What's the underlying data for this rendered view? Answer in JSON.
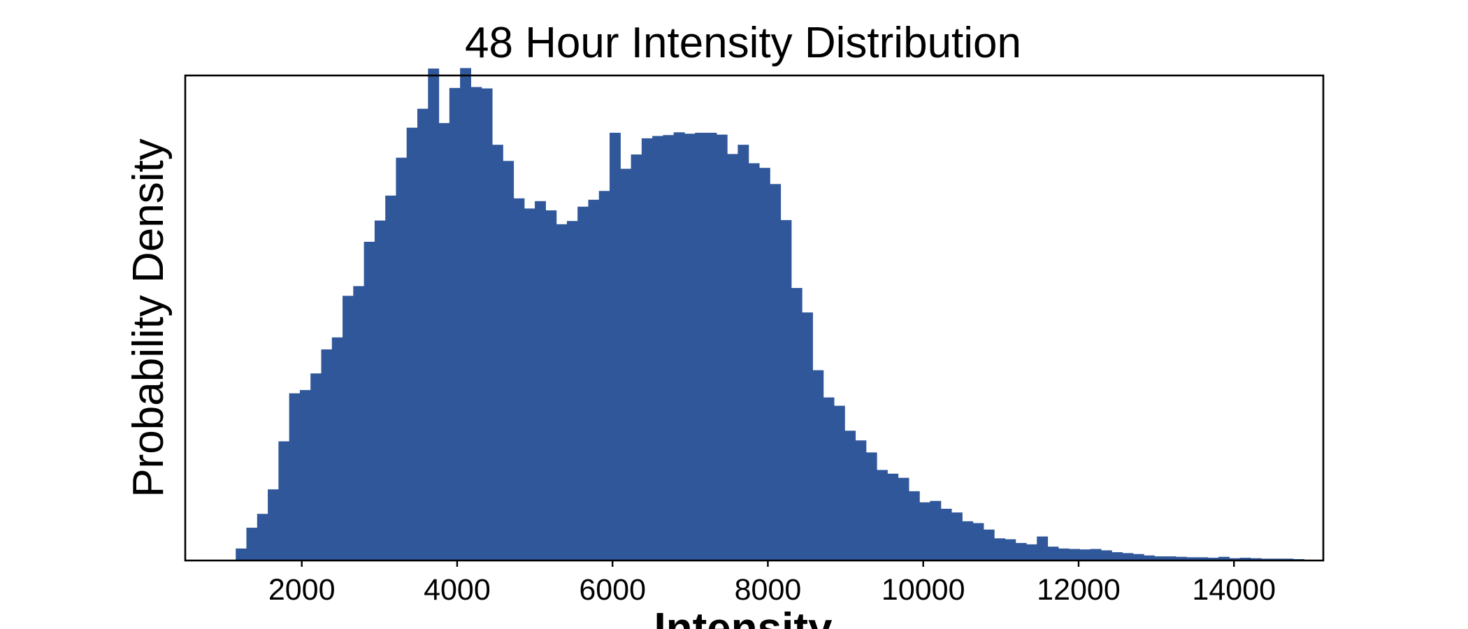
{
  "chart_data": {
    "type": "bar",
    "title": "48 Hour Intensity Distribution",
    "xlabel": "Intensity",
    "ylabel": "Probability Density",
    "xlim": [
      500,
      15150
    ],
    "ylim": [
      0,
      1.05
    ],
    "x_ticks": [
      2000,
      4000,
      6000,
      8000,
      10000,
      12000,
      14000
    ],
    "y_ticks_shown": false,
    "grid": false,
    "bar_color": "#30579a",
    "bins": {
      "start": 1150,
      "width": 137.5,
      "values": [
        0.026,
        0.071,
        0.101,
        0.154,
        0.258,
        0.362,
        0.369,
        0.405,
        0.457,
        0.483,
        0.573,
        0.594,
        0.69,
        0.736,
        0.79,
        0.872,
        0.937,
        0.978,
        1.065,
        0.947,
        1.023,
        1.066,
        1.025,
        1.022,
        0.9,
        0.865,
        0.784,
        0.762,
        0.778,
        0.758,
        0.728,
        0.735,
        0.766,
        0.781,
        0.8,
        0.926,
        0.848,
        0.879,
        0.914,
        0.919,
        0.921,
        0.927,
        0.924,
        0.926,
        0.926,
        0.922,
        0.88,
        0.9,
        0.86,
        0.85,
        0.815,
        0.737,
        0.59,
        0.537,
        0.412,
        0.353,
        0.335,
        0.281,
        0.26,
        0.234,
        0.196,
        0.188,
        0.179,
        0.15,
        0.126,
        0.129,
        0.112,
        0.104,
        0.085,
        0.081,
        0.067,
        0.048,
        0.046,
        0.038,
        0.035,
        0.052,
        0.03,
        0.026,
        0.025,
        0.024,
        0.025,
        0.022,
        0.018,
        0.016,
        0.014,
        0.011,
        0.009,
        0.009,
        0.008,
        0.007,
        0.007,
        0.006,
        0.008,
        0.005,
        0.006,
        0.005,
        0.004,
        0.004,
        0.004,
        0.003
      ]
    }
  }
}
